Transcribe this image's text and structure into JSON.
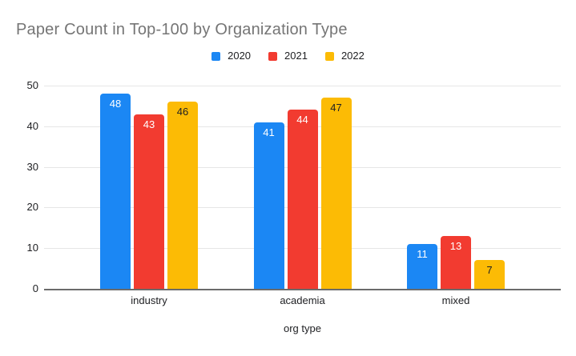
{
  "chart_data": {
    "type": "bar",
    "title": "Paper Count in Top-100 by Organization Type",
    "xlabel": "org type",
    "ylabel": "",
    "categories": [
      "industry",
      "academia",
      "mixed"
    ],
    "series": [
      {
        "name": "2020",
        "color": "#1b87f4",
        "label_color": "#ffffff",
        "values": [
          48,
          41,
          11
        ]
      },
      {
        "name": "2021",
        "color": "#f23b30",
        "label_color": "#ffffff",
        "values": [
          43,
          44,
          13
        ]
      },
      {
        "name": "2022",
        "color": "#fcbb05",
        "label_color": "#202124",
        "values": [
          46,
          47,
          7
        ]
      }
    ],
    "ylim": [
      0,
      50
    ],
    "yticks": [
      0,
      10,
      20,
      30,
      40,
      50
    ],
    "grid": true,
    "legend_position": "top",
    "data_labels": true
  },
  "colors": {
    "title_text": "#757575",
    "axis_text": "#202124",
    "gridline": "#e6e6e6",
    "baseline": "#6b6b6b",
    "background": "#ffffff"
  }
}
